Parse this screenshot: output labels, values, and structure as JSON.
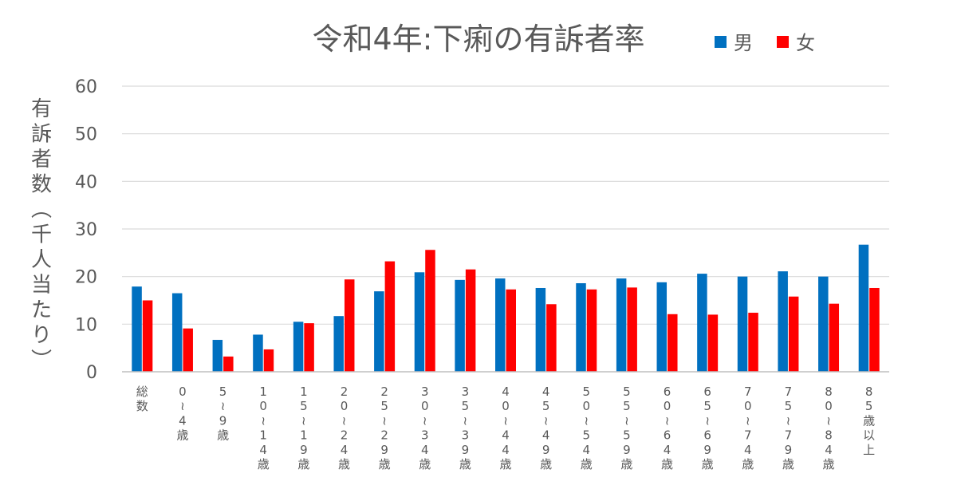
{
  "chart_data": {
    "type": "bar",
    "title": "令和4年:下痢の有訴者率",
    "ylabel": "有訴者数（千人当たり）",
    "xlabel": "",
    "ylim": [
      0,
      60
    ],
    "yticks": [
      0,
      10,
      20,
      30,
      40,
      50,
      60
    ],
    "grid": true,
    "legend_position": "top-right",
    "categories": [
      "総数",
      "0～4歳",
      "5～9歳",
      "10～14歳",
      "15～19歳",
      "20～24歳",
      "25～29歳",
      "30～34歳",
      "35～39歳",
      "40～44歳",
      "45～49歳",
      "50～54歳",
      "55～59歳",
      "60～64歳",
      "65～69歳",
      "70～74歳",
      "75～79歳",
      "80～84歳",
      "85歳以上"
    ],
    "series": [
      {
        "name": "男",
        "color": "#0070C0",
        "values": [
          17.9,
          16.5,
          6.7,
          7.8,
          10.5,
          11.7,
          16.9,
          20.9,
          19.3,
          19.6,
          17.6,
          18.6,
          19.6,
          18.8,
          20.6,
          20.0,
          21.1,
          20.0,
          26.7
        ]
      },
      {
        "name": "女",
        "color": "#FF0000",
        "values": [
          15.0,
          9.1,
          3.2,
          4.7,
          10.2,
          19.4,
          23.2,
          25.6,
          21.5,
          17.3,
          14.2,
          17.3,
          17.7,
          12.1,
          12.0,
          12.4,
          15.8,
          14.3,
          17.6
        ]
      }
    ]
  }
}
